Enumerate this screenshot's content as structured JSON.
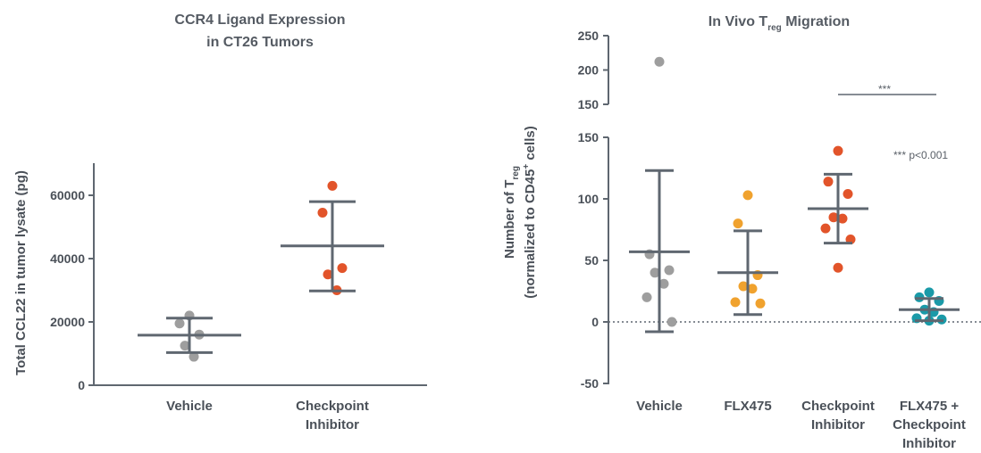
{
  "chart_data": [
    {
      "type": "scatter",
      "title_lines": [
        "CCR4 Ligand Expression",
        "in CT26 Tumors"
      ],
      "ylabel": "Total CCL22 in tumor lysate (pg)",
      "ylim": [
        0,
        70000
      ],
      "yticks": [
        0,
        20000,
        40000,
        60000
      ],
      "grid": false,
      "categories": [
        {
          "name": "Vehicle",
          "lines": [
            "Vehicle"
          ],
          "color": "#9e9e9e",
          "values": [
            22000,
            19500,
            16000,
            12500,
            9000
          ],
          "mean": 15800,
          "err_low": 10300,
          "err_high": 21200
        },
        {
          "name": "Checkpoint Inhibitor",
          "lines": [
            "Checkpoint",
            "Inhibitor"
          ],
          "color": "#e2542a",
          "values": [
            63000,
            54500,
            37000,
            35000,
            30000
          ],
          "mean": 44000,
          "err_low": 29800,
          "err_high": 58000
        }
      ]
    },
    {
      "type": "scatter",
      "title_prefix": "In Vivo T",
      "title_sub": "reg",
      "title_suffix": " Migration",
      "ylabel_line1_prefix": "Number of T",
      "ylabel_line1_sub": "reg",
      "ylabel_line2_prefix": "(normalized to CD45",
      "ylabel_line2_sup": "+",
      "ylabel_line2_suffix": " cells)",
      "ylim_lower": [
        -50,
        150
      ],
      "ylim_upper": [
        150,
        250
      ],
      "yticks_lower": [
        -50,
        0,
        50,
        100,
        150
      ],
      "yticks_upper": [
        150,
        200,
        250
      ],
      "grid": false,
      "zero_line": "dotted",
      "significance": {
        "label": "***",
        "from": "Checkpoint Inhibitor",
        "to": "FLX475 + Checkpoint Inhibitor"
      },
      "annotation": "*** p<0.001",
      "categories": [
        {
          "name": "Vehicle",
          "lines": [
            "Vehicle"
          ],
          "color": "#9e9e9e",
          "values": [
            212,
            55,
            42,
            40,
            31,
            20,
            0
          ],
          "mean": 57,
          "err_low": -8,
          "err_high": 123
        },
        {
          "name": "FLX475",
          "lines": [
            "FLX475"
          ],
          "color": "#f0a22e",
          "values": [
            103,
            80,
            38,
            29,
            27,
            16,
            15
          ],
          "mean": 40,
          "err_low": 6,
          "err_high": 74
        },
        {
          "name": "Checkpoint Inhibitor",
          "lines": [
            "Checkpoint",
            "Inhibitor"
          ],
          "color": "#e2542a",
          "values": [
            139,
            114,
            104,
            85,
            84,
            76,
            67,
            44
          ],
          "mean": 92,
          "err_low": 64,
          "err_high": 120
        },
        {
          "name": "FLX475 + Checkpoint Inhibitor",
          "lines": [
            "FLX475 +",
            "Checkpoint",
            "Inhibitor"
          ],
          "color": "#1a9aa8",
          "values": [
            24,
            20,
            17,
            10,
            8,
            3,
            2,
            1
          ],
          "mean": 10,
          "err_low": 1,
          "err_high": 19
        }
      ]
    }
  ]
}
